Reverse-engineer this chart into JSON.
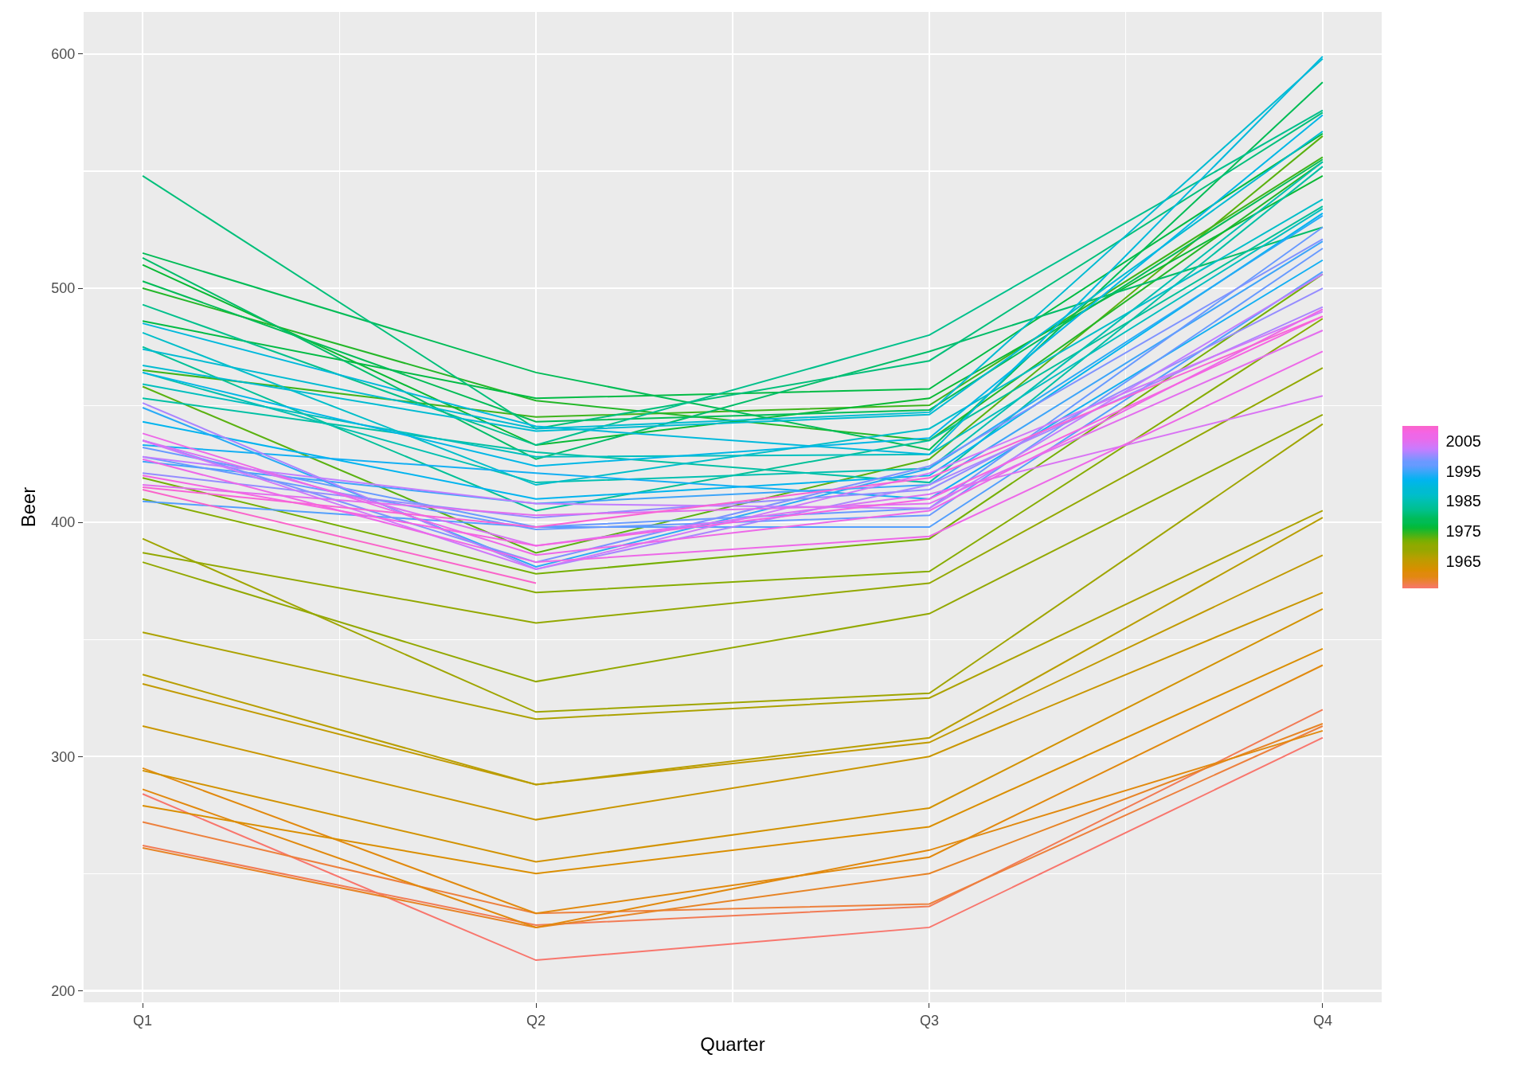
{
  "chart_data": {
    "type": "line",
    "xlabel": "Quarter",
    "ylabel": "Beer",
    "categories": [
      "Q1",
      "Q2",
      "Q3",
      "Q4"
    ],
    "ylim": [
      195,
      618
    ],
    "yticks": [
      200,
      300,
      400,
      500,
      600
    ],
    "grid": true,
    "legend": false,
    "clim": [
      1956,
      2010
    ],
    "cticks": [
      1965,
      1975,
      1985,
      1995,
      2005
    ],
    "series": [
      {
        "color": "#F8766D",
        "values": [
          284,
          213,
          227,
          308
        ]
      },
      {
        "color": "#F27B55",
        "values": [
          262,
          228,
          236,
          320
        ]
      },
      {
        "color": "#ED803D",
        "values": [
          272,
          233,
          237,
          313
        ]
      },
      {
        "color": "#E78426",
        "values": [
          261,
          227,
          250,
          314
        ]
      },
      {
        "color": "#E1890E",
        "values": [
          286,
          227,
          260,
          311
        ]
      },
      {
        "color": "#E1890E",
        "values": [
          295,
          233,
          257,
          339
        ]
      },
      {
        "color": "#DA8E00",
        "values": [
          279,
          250,
          270,
          346
        ]
      },
      {
        "color": "#D29200",
        "values": [
          294,
          255,
          278,
          363
        ]
      },
      {
        "color": "#C99600",
        "values": [
          313,
          273,
          300,
          370
        ]
      },
      {
        "color": "#C19A00",
        "values": [
          331,
          288,
          306,
          386
        ]
      },
      {
        "color": "#B89E00",
        "values": [
          335,
          288,
          308,
          402
        ]
      },
      {
        "color": "#ACA200",
        "values": [
          353,
          316,
          325,
          405
        ]
      },
      {
        "color": "#9FA500",
        "values": [
          393,
          319,
          327,
          442
        ]
      },
      {
        "color": "#93A800",
        "values": [
          383,
          332,
          361,
          446
        ]
      },
      {
        "color": "#93A800",
        "values": [
          387,
          357,
          374,
          466
        ]
      },
      {
        "color": "#86AC00",
        "values": [
          410,
          370,
          379,
          487
        ]
      },
      {
        "color": "#75AF03",
        "values": [
          419,
          378,
          393,
          506
        ]
      },
      {
        "color": "#5AB10F",
        "values": [
          458,
          387,
          427,
          565
        ]
      },
      {
        "color": "#3FB41B",
        "values": [
          465,
          445,
          450,
          556
        ]
      },
      {
        "color": "#24B728",
        "values": [
          500,
          452,
          435,
          554
        ]
      },
      {
        "color": "#09B934",
        "values": [
          510,
          433,
          453,
          548
        ]
      },
      {
        "color": "#00BB44",
        "values": [
          486,
          453,
          457,
          566
        ]
      },
      {
        "color": "#00BC56",
        "values": [
          515,
          464,
          431,
          588
        ]
      },
      {
        "color": "#00BC56",
        "values": [
          503,
          443,
          448,
          555
        ]
      },
      {
        "color": "#00BD68",
        "values": [
          513,
          427,
          473,
          526
        ]
      },
      {
        "color": "#00BF7A",
        "values": [
          548,
          440,
          469,
          575
        ]
      },
      {
        "color": "#00C08C",
        "values": [
          493,
          433,
          480,
          576
        ]
      },
      {
        "color": "#00C098",
        "values": [
          475,
          405,
          435,
          535
        ]
      },
      {
        "color": "#00C0A4",
        "values": [
          453,
          430,
          417,
          552
        ]
      },
      {
        "color": "#00C0B0",
        "values": [
          464,
          417,
          423,
          554
        ]
      },
      {
        "color": "#00BFBE",
        "values": [
          459,
          428,
          429,
          534
        ]
      },
      {
        "color": "#00BEC9",
        "values": [
          481,
          416,
          440,
          538
        ]
      },
      {
        "color": "#00BBD2",
        "values": [
          474,
          440,
          447,
          598
        ]
      },
      {
        "color": "#00BBD2",
        "values": [
          467,
          439,
          446,
          567
        ]
      },
      {
        "color": "#00B9DC",
        "values": [
          485,
          441,
          429,
          599
        ]
      },
      {
        "color": "#00B7E6",
        "values": [
          464,
          424,
          436,
          574
        ]
      },
      {
        "color": "#00B4EF",
        "values": [
          443,
          410,
          420,
          532
        ]
      },
      {
        "color": "#13AFF3",
        "values": [
          433,
          421,
          410,
          512
        ]
      },
      {
        "color": "#29AAF6",
        "values": [
          449,
          381,
          423,
          531
        ]
      },
      {
        "color": "#3EA5F9",
        "values": [
          426,
          408,
          416,
          520
        ]
      },
      {
        "color": "#539FFD",
        "values": [
          409,
          398,
          398,
          507
        ]
      },
      {
        "color": "#689AFF",
        "values": [
          432,
          398,
          406,
          526
        ]
      },
      {
        "color": "#689AFF",
        "values": [
          428,
          397,
          403,
          517
        ]
      },
      {
        "color": "#7F93FF",
        "values": [
          435,
          383,
          424,
          521
        ]
      },
      {
        "color": "#958CFF",
        "values": [
          421,
          402,
          414,
          500
        ]
      },
      {
        "color": "#AB85FF",
        "values": [
          451,
          380,
          416,
          492
        ]
      },
      {
        "color": "#C17EFF",
        "values": [
          428,
          408,
          406,
          506
        ]
      },
      {
        "color": "#CF78FA",
        "values": [
          435,
          380,
          421,
          490
        ]
      },
      {
        "color": "#D973F4",
        "values": [
          435,
          390,
          412,
          454
        ]
      },
      {
        "color": "#E36EEE",
        "values": [
          416,
          403,
          408,
          482
        ]
      },
      {
        "color": "#ED68E8",
        "values": [
          438,
          386,
          405,
          491
        ]
      },
      {
        "color": "#ED68E8",
        "values": [
          427,
          383,
          394,
          473
        ]
      },
      {
        "color": "#F564E2",
        "values": [
          420,
          390,
          410,
          488
        ]
      },
      {
        "color": "#F864D6",
        "values": [
          415,
          398,
          419,
          488
        ]
      },
      {
        "color": "#FA64CA",
        "values": [
          414,
          374,
          null,
          null
        ]
      }
    ]
  }
}
